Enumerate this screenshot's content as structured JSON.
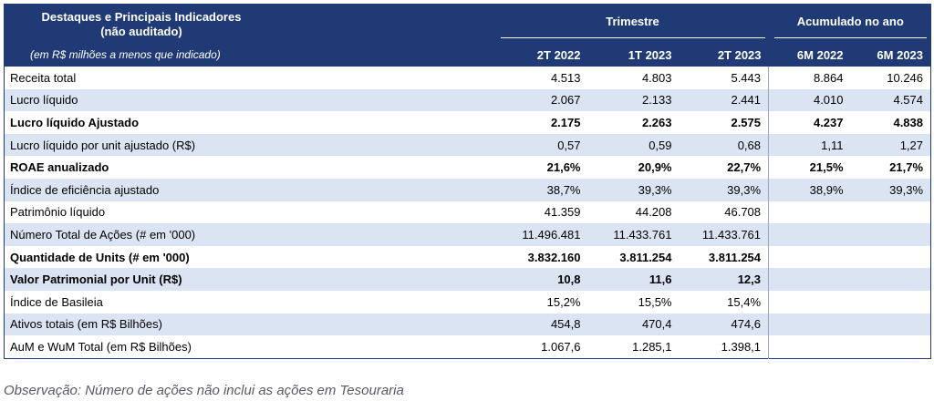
{
  "table": {
    "title_line1": "Destaques e Principais Indicadores",
    "title_line2": "(não auditado)",
    "subtitle": "(em R$ milhões a menos que indicado)",
    "group_quarter": "Trimestre",
    "group_ytd": "Acumulado no ano",
    "columns": [
      "2T 2022",
      "1T 2023",
      "2T 2023",
      "6M 2022",
      "6M 2023"
    ],
    "rows": [
      {
        "label": "Receita total",
        "values": [
          "4.513",
          "4.803",
          "5.443",
          "8.864",
          "10.246"
        ],
        "bold": false,
        "shaded": false
      },
      {
        "label": "Lucro líquido",
        "values": [
          "2.067",
          "2.133",
          "2.441",
          "4.010",
          "4.574"
        ],
        "bold": false,
        "shaded": true
      },
      {
        "label": "Lucro líquido Ajustado",
        "values": [
          "2.175",
          "2.263",
          "2.575",
          "4.237",
          "4.838"
        ],
        "bold": true,
        "shaded": false
      },
      {
        "label": "Lucro líquido por unit ajustado (R$)",
        "values": [
          "0,57",
          "0,59",
          "0,68",
          "1,11",
          "1,27"
        ],
        "bold": false,
        "shaded": true
      },
      {
        "label": "ROAE anualizado",
        "values": [
          "21,6%",
          "20,9%",
          "22,7%",
          "21,5%",
          "21,7%"
        ],
        "bold": true,
        "shaded": false
      },
      {
        "label": "Índice de eficiência ajustado",
        "values": [
          "38,7%",
          "39,3%",
          "39,3%",
          "38,9%",
          "39,3%"
        ],
        "bold": false,
        "shaded": true
      },
      {
        "label": "Patrimônio líquido",
        "values": [
          "41.359",
          "44.208",
          "46.708",
          "",
          ""
        ],
        "bold": false,
        "shaded": false
      },
      {
        "label": "Número Total de Ações (# em '000)",
        "values": [
          "11.496.481",
          "11.433.761",
          "11.433.761",
          "",
          ""
        ],
        "bold": false,
        "shaded": true
      },
      {
        "label": "Quantidade de Units (# em '000)",
        "values": [
          "3.832.160",
          "3.811.254",
          "3.811.254",
          "",
          ""
        ],
        "bold": true,
        "shaded": false
      },
      {
        "label": "Valor Patrimonial por Unit (R$)",
        "values": [
          "10,8",
          "11,6",
          "12,3",
          "",
          ""
        ],
        "bold": true,
        "shaded": true
      },
      {
        "label": "Índice de Basileia",
        "values": [
          "15,2%",
          "15,5%",
          "15,4%",
          "",
          ""
        ],
        "bold": false,
        "shaded": false
      },
      {
        "label": "Ativos totais (em R$ Bilhões)",
        "values": [
          "454,8",
          "470,4",
          "474,6",
          "",
          ""
        ],
        "bold": false,
        "shaded": true
      },
      {
        "label": "AuM e WuM Total (em R$ Bilhões)",
        "values": [
          "1.067,6",
          "1.285,1",
          "1.398,1",
          "",
          ""
        ],
        "bold": false,
        "shaded": false
      }
    ]
  },
  "note": "Observação: Número de ações não inclui as ações em Tesouraria",
  "colors": {
    "header_bg": "#1f3a74",
    "shade": "#dbe4f3"
  }
}
